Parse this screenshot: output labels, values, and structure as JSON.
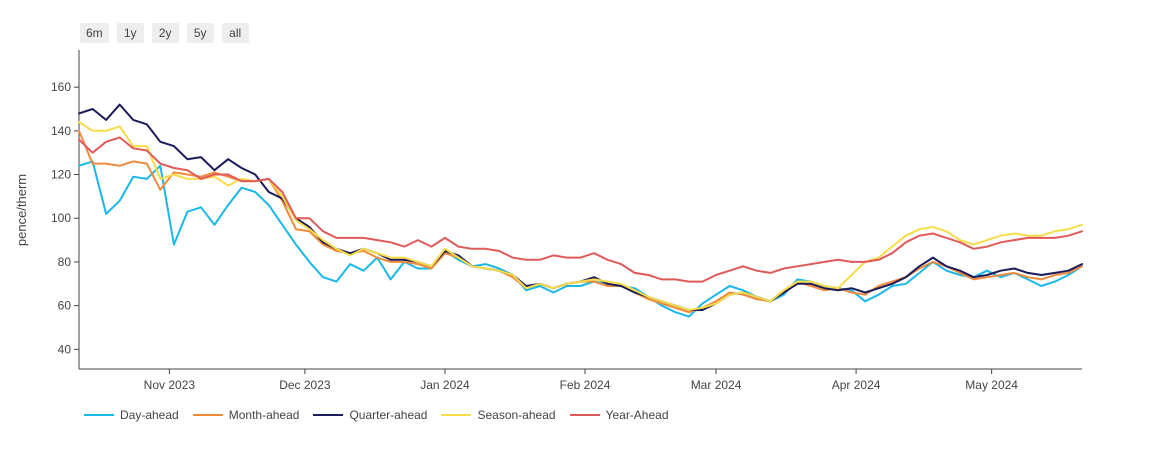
{
  "range_selector": {
    "buttons": [
      "6m",
      "1y",
      "2y",
      "5y",
      "all"
    ]
  },
  "chart_data": {
    "type": "line",
    "title": "",
    "xlabel": "",
    "ylabel": "pence/therm",
    "ylim": [
      31,
      177
    ],
    "xlim": [
      "2023-10-12",
      "2024-05-21"
    ],
    "y_ticks": [
      40,
      60,
      80,
      100,
      120,
      140,
      160
    ],
    "x_ticks": [
      {
        "date": "2023-11-01",
        "label": "Nov 2023"
      },
      {
        "date": "2023-12-01",
        "label": "Dec 2023"
      },
      {
        "date": "2024-01-01",
        "label": "Jan 2024"
      },
      {
        "date": "2024-02-01",
        "label": "Feb 2024"
      },
      {
        "date": "2024-03-01",
        "label": "Mar 2024"
      },
      {
        "date": "2024-04-01",
        "label": "Apr 2024"
      },
      {
        "date": "2024-05-01",
        "label": "May 2024"
      }
    ],
    "grid": false,
    "legend_position": "bottom-left",
    "x": [
      "2023-10-12",
      "2023-10-15",
      "2023-10-18",
      "2023-10-21",
      "2023-10-24",
      "2023-10-27",
      "2023-10-30",
      "2023-11-02",
      "2023-11-05",
      "2023-11-08",
      "2023-11-11",
      "2023-11-14",
      "2023-11-17",
      "2023-11-20",
      "2023-11-23",
      "2023-11-26",
      "2023-11-29",
      "2023-12-02",
      "2023-12-05",
      "2023-12-08",
      "2023-12-11",
      "2023-12-14",
      "2023-12-17",
      "2023-12-20",
      "2023-12-23",
      "2023-12-26",
      "2023-12-29",
      "2024-01-01",
      "2024-01-04",
      "2024-01-07",
      "2024-01-10",
      "2024-01-13",
      "2024-01-16",
      "2024-01-19",
      "2024-01-22",
      "2024-01-25",
      "2024-01-28",
      "2024-01-31",
      "2024-02-03",
      "2024-02-06",
      "2024-02-09",
      "2024-02-12",
      "2024-02-15",
      "2024-02-18",
      "2024-02-21",
      "2024-02-24",
      "2024-02-27",
      "2024-03-01",
      "2024-03-04",
      "2024-03-07",
      "2024-03-10",
      "2024-03-13",
      "2024-03-16",
      "2024-03-19",
      "2024-03-22",
      "2024-03-25",
      "2024-03-28",
      "2024-03-31",
      "2024-04-03",
      "2024-04-06",
      "2024-04-09",
      "2024-04-12",
      "2024-04-15",
      "2024-04-18",
      "2024-04-21",
      "2024-04-24",
      "2024-04-27",
      "2024-04-30",
      "2024-05-03",
      "2024-05-06",
      "2024-05-09",
      "2024-05-12",
      "2024-05-15",
      "2024-05-18",
      "2024-05-21"
    ],
    "series": [
      {
        "name": "Day-ahead",
        "color": "#1ab8e8",
        "values": [
          124,
          126,
          102,
          108,
          119,
          118,
          124,
          88,
          103,
          105,
          97,
          106,
          114,
          112,
          106,
          97,
          88,
          80,
          73,
          71,
          79,
          76,
          82,
          72,
          80,
          77,
          77,
          85,
          81,
          78,
          79,
          77,
          74,
          67,
          69,
          66,
          69,
          69,
          71,
          70,
          69,
          68,
          64,
          60,
          57,
          55,
          61,
          65,
          69,
          67,
          64,
          62,
          65,
          72,
          71,
          69,
          68,
          67,
          62,
          65,
          69,
          70,
          75,
          80,
          76,
          74,
          73,
          76,
          73,
          75,
          72,
          69,
          71,
          74,
          78
        ]
      },
      {
        "name": "Month-ahead",
        "color": "#f28a3c",
        "values": [
          140,
          125,
          125,
          124,
          126,
          125,
          113,
          121,
          120,
          119,
          121,
          119,
          117,
          117,
          118,
          108,
          95,
          94,
          88,
          85,
          84,
          85,
          82,
          80,
          80,
          79,
          77,
          84,
          82,
          78,
          77,
          76,
          73,
          68,
          70,
          68,
          70,
          71,
          71,
          69,
          69,
          66,
          63,
          61,
          59,
          57,
          59,
          62,
          66,
          65,
          63,
          62,
          67,
          71,
          69,
          67,
          68,
          66,
          65,
          69,
          71,
          73,
          77,
          80,
          78,
          75,
          72,
          73,
          74,
          75,
          73,
          72,
          74,
          75,
          78
        ]
      },
      {
        "name": "Quarter-ahead",
        "color": "#1c1b5a",
        "values": [
          148,
          150,
          145,
          152,
          145,
          143,
          135,
          133,
          127,
          128,
          122,
          127,
          123,
          120,
          112,
          109,
          100,
          96,
          89,
          86,
          84,
          86,
          84,
          81,
          81,
          80,
          78,
          85,
          83,
          78,
          77,
          76,
          74,
          69,
          70,
          68,
          70,
          71,
          73,
          70,
          69,
          66,
          64,
          62,
          60,
          58,
          58,
          61,
          65,
          66,
          64,
          62,
          66,
          70,
          70,
          68,
          67,
          68,
          66,
          68,
          70,
          73,
          78,
          82,
          78,
          76,
          73,
          74,
          76,
          77,
          75,
          74,
          75,
          76,
          79
        ]
      },
      {
        "name": "Season-ahead",
        "color": "#f7dd4a",
        "values": [
          144,
          140,
          140,
          142,
          133,
          133,
          118,
          120,
          118,
          118,
          119,
          115,
          118,
          117,
          118,
          110,
          99,
          95,
          90,
          86,
          83,
          86,
          84,
          82,
          82,
          80,
          78,
          86,
          82,
          78,
          77,
          76,
          74,
          68,
          70,
          68,
          70,
          71,
          72,
          71,
          70,
          67,
          64,
          62,
          60,
          58,
          59,
          61,
          65,
          66,
          64,
          62,
          67,
          71,
          71,
          69,
          68,
          74,
          80,
          82,
          87,
          92,
          95,
          96,
          94,
          90,
          88,
          90,
          92,
          93,
          92,
          92,
          94,
          95,
          97
        ]
      },
      {
        "name": "Year-Ahead",
        "color": "#e05a5a",
        "values": [
          136,
          130,
          135,
          137,
          132,
          131,
          125,
          123,
          122,
          118,
          120,
          120,
          117,
          117,
          118,
          112,
          100,
          100,
          94,
          91,
          91,
          91,
          90,
          89,
          87,
          90,
          87,
          91,
          87,
          86,
          86,
          85,
          82,
          81,
          81,
          83,
          82,
          82,
          84,
          81,
          79,
          75,
          74,
          72,
          72,
          71,
          71,
          74,
          76,
          78,
          76,
          75,
          77,
          78,
          79,
          80,
          81,
          80,
          80,
          81,
          84,
          89,
          92,
          93,
          91,
          89,
          86,
          87,
          89,
          90,
          91,
          91,
          91,
          92,
          94
        ]
      }
    ]
  }
}
